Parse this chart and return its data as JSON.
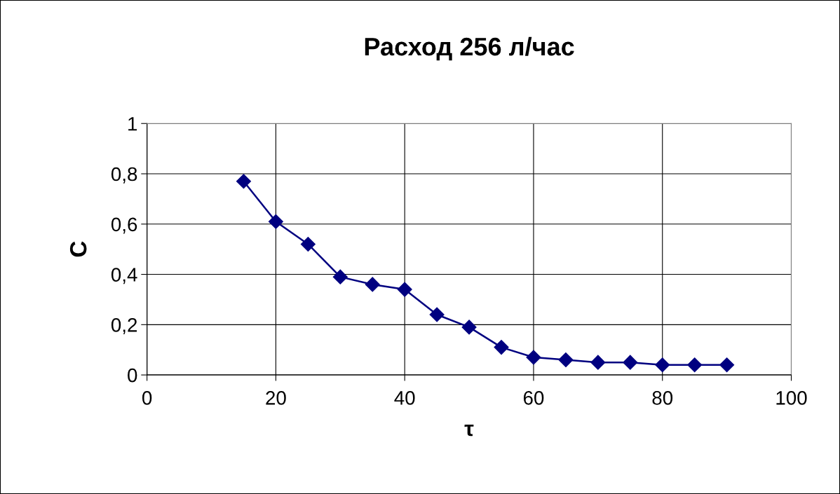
{
  "chart_data": {
    "type": "line",
    "title": "Расход 256 л/час",
    "xlabel": "τ",
    "ylabel": "C",
    "x": [
      15,
      20,
      25,
      30,
      35,
      40,
      45,
      50,
      55,
      60,
      65,
      70,
      75,
      80,
      85,
      90
    ],
    "series": [
      {
        "color": "#000080",
        "values": [
          0.77,
          0.61,
          0.52,
          0.39,
          0.36,
          0.34,
          0.24,
          0.19,
          0.11,
          0.07,
          0.06,
          0.05,
          0.05,
          0.04,
          0.04,
          0.04
        ]
      }
    ],
    "xlim": [
      0,
      100
    ],
    "xticks": [
      0,
      20,
      40,
      60,
      80,
      100
    ],
    "ylim": [
      0,
      1
    ],
    "yticks": [
      0,
      {
        "value": 0.2,
        "label": "0,2"
      },
      {
        "value": 0.4,
        "label": "0,4"
      },
      {
        "value": 0.6,
        "label": "0,6"
      },
      {
        "value": 0.8,
        "label": "0,8"
      },
      1
    ],
    "grid": true,
    "legend": false,
    "marker": "diamond",
    "line_style": "solid"
  }
}
